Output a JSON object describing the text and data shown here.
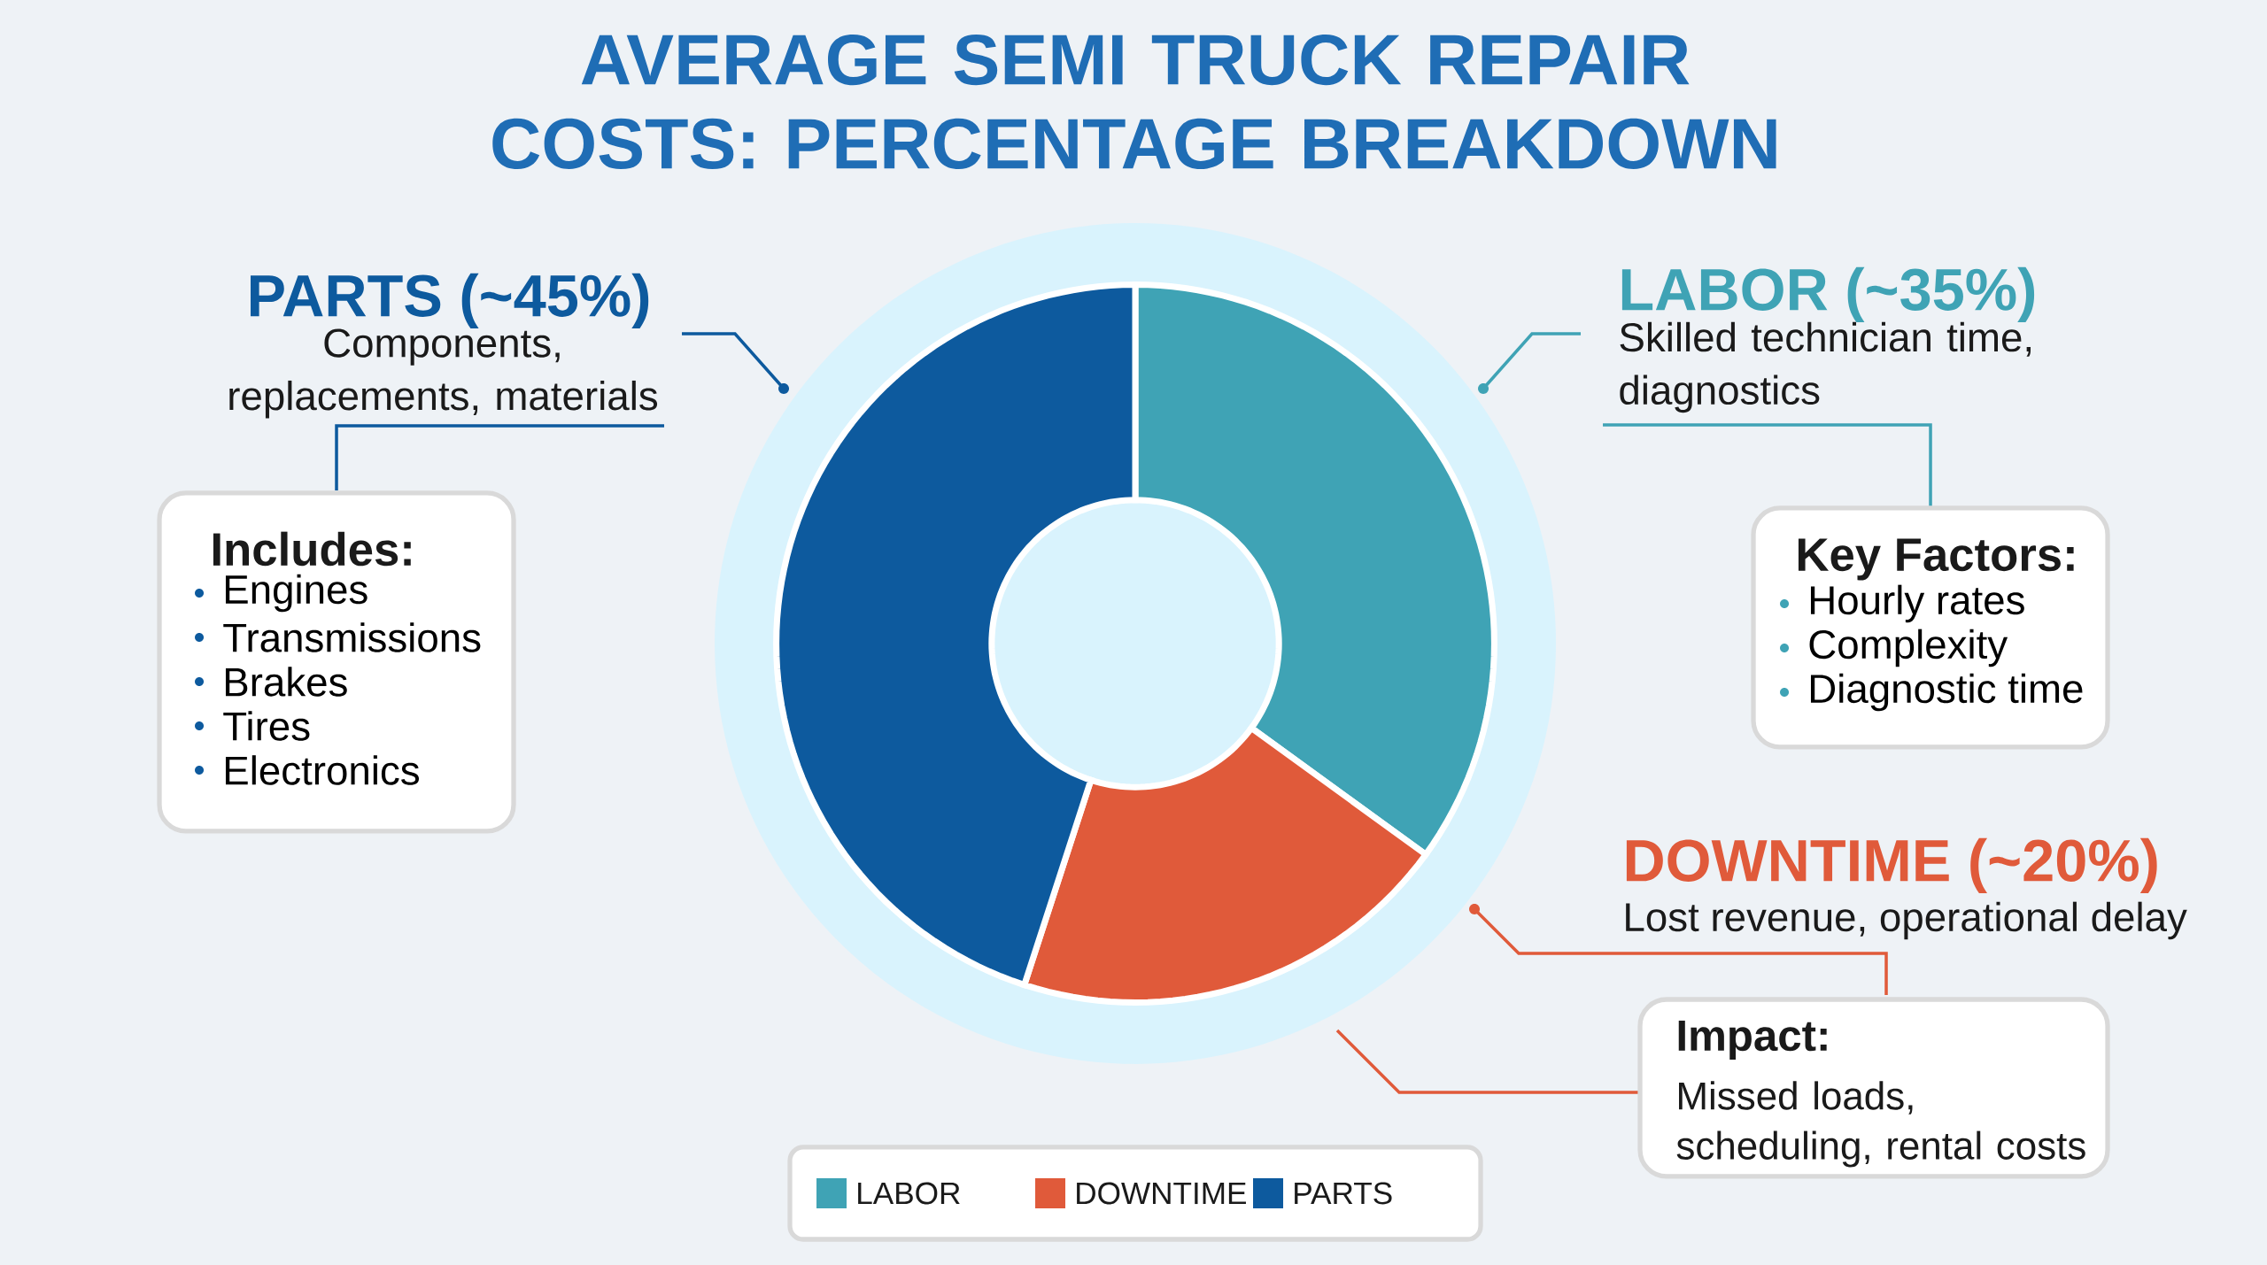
{
  "chart_data": {
    "type": "donut",
    "title": "AVERAGE SEMI TRUCK REPAIR COSTS: PERCENTAGE BREAKDOWN",
    "categories": [
      "LABOR",
      "DOWNTIME",
      "PARTS"
    ],
    "values": [
      35,
      20,
      45
    ],
    "colors": [
      "#3fa3b5",
      "#e05a3a",
      "#0d5a9e"
    ],
    "legend": "bottom",
    "annotations": [
      "PARTS (~45%)",
      "Components, replacements, materials",
      "Includes:",
      "Engines",
      "Transmissions",
      "Brakes",
      "Tires",
      "Electronics",
      "LABOR (~35%)",
      "Skilled technician time, diagnostics",
      "Key Factors:",
      "Hourly rates",
      "Complexity",
      "Diagnostic time",
      "DOWNTIME (~20%)",
      "Lost revenue, operational delay",
      "Impact:",
      "Missed loads, scheduling, rental costs"
    ]
  }
}
